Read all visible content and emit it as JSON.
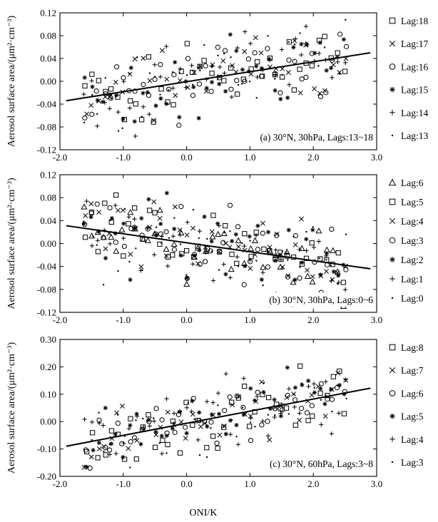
{
  "figure": {
    "xlabel": "ONI/K"
  },
  "chart_data": [
    {
      "type": "scatter",
      "annotation": "(a) 30°N, 30hPa, Lags:13~18",
      "ylabel": "Aerosol surface area/(μm²·cm⁻³)",
      "xlim": [
        -2.0,
        3.0
      ],
      "ylim": [
        -0.12,
        0.12
      ],
      "xticks": [
        "-2.0",
        "-1.0",
        "0.0",
        "1.0",
        "2.0",
        "3.0"
      ],
      "yticks": [
        "-0.12",
        "-0.08",
        "-0.04",
        "0.00",
        "0.04",
        "0.08",
        "0.12"
      ],
      "fit_line": {
        "x": [
          -1.9,
          2.9
        ],
        "y": [
          -0.034,
          0.05
        ]
      },
      "series": [
        {
          "name": "Lag:18",
          "marker": "square"
        },
        {
          "name": "Lag:17",
          "marker": "x"
        },
        {
          "name": "Lag:16",
          "marker": "circle"
        },
        {
          "name": "Lag:15",
          "marker": "asterisk"
        },
        {
          "name": "Lag:14",
          "marker": "plus"
        },
        {
          "name": "Lag:13",
          "marker": "dot"
        }
      ],
      "trend": {
        "slope": 0.0175,
        "intercept": -0.0008
      },
      "spread": 0.042,
      "seed": 11
    },
    {
      "type": "scatter",
      "annotation": "(b) 30°N, 30hPa, Lags:0~6",
      "ylabel": "Aerosol surface area/(μm²·cm⁻³)",
      "xlim": [
        -2.0,
        3.0
      ],
      "ylim": [
        -0.12,
        0.12
      ],
      "xticks": [
        "-2.0",
        "-1.0",
        "0.0",
        "1.0",
        "2.0",
        "3.0"
      ],
      "yticks": [
        "-0.12",
        "-0.08",
        "-0.04",
        "0.00",
        "0.04",
        "0.08",
        "0.12"
      ],
      "fit_line": {
        "x": [
          -1.9,
          2.9
        ],
        "y": [
          0.031,
          -0.044
        ]
      },
      "series": [
        {
          "name": "Lag:6",
          "marker": "triangle"
        },
        {
          "name": "Lag:5",
          "marker": "square"
        },
        {
          "name": "Lag:4",
          "marker": "x"
        },
        {
          "name": "Lag:3",
          "marker": "circle"
        },
        {
          "name": "Lag:2",
          "marker": "asterisk"
        },
        {
          "name": "Lag:1",
          "marker": "plus"
        },
        {
          "name": "Lag:0",
          "marker": "dot"
        }
      ],
      "trend": {
        "slope": -0.0157,
        "intercept": 0.0012
      },
      "spread": 0.04,
      "seed": 29
    },
    {
      "type": "scatter",
      "annotation": "(c) 30°N, 60hPa, Lags:3~8",
      "ylabel": "Aerosol surface area/(μm²·cm⁻³)",
      "xlim": [
        -2.0,
        3.0
      ],
      "ylim": [
        -0.2,
        0.3
      ],
      "xticks": [
        "-2.0",
        "-1.0",
        "0.0",
        "1.0",
        "2.0",
        "3.0"
      ],
      "yticks": [
        "-0.20",
        "-0.10",
        "0.00",
        "0.10",
        "0.20",
        "0.30"
      ],
      "fit_line": {
        "x": [
          -1.9,
          2.9
        ],
        "y": [
          -0.09,
          0.122
        ]
      },
      "series": [
        {
          "name": "Lag:8",
          "marker": "square"
        },
        {
          "name": "Lag:7",
          "marker": "x"
        },
        {
          "name": "Lag:6",
          "marker": "circle"
        },
        {
          "name": "Lag:5",
          "marker": "asterisk"
        },
        {
          "name": "Lag:4",
          "marker": "plus"
        },
        {
          "name": "Lag:3",
          "marker": "dot"
        }
      ],
      "trend": {
        "slope": 0.044,
        "intercept": -0.006
      },
      "spread": 0.08,
      "seed": 47
    }
  ]
}
